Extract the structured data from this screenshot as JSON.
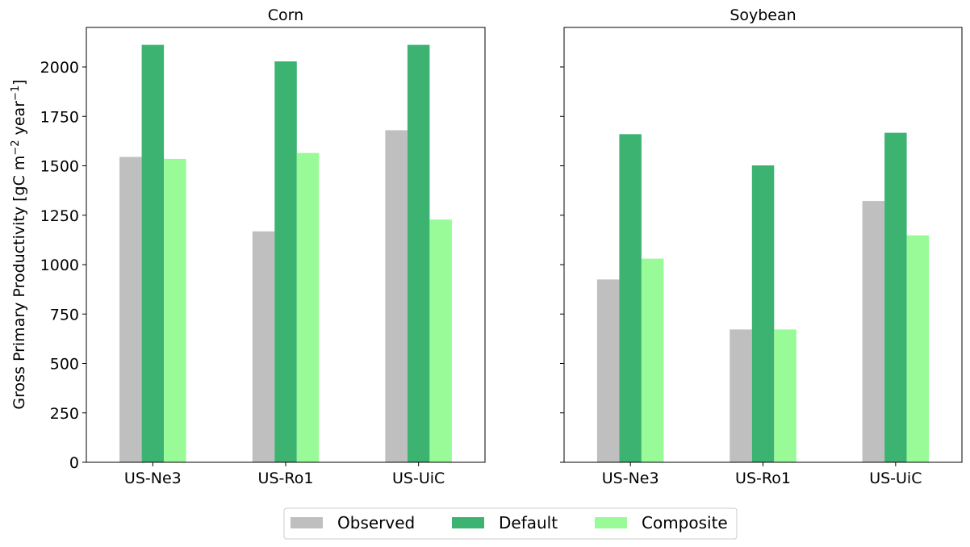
{
  "chart_data": {
    "type": "bar",
    "ylabel": "Gross Primary Productivity [gC m",
    "ylabel_sup1": "−2",
    "ylabel_mid": " year",
    "ylabel_sup2": "−1",
    "ylabel_end": "]",
    "ylim": [
      0,
      2200
    ],
    "yticks": [
      "0",
      "250",
      "500",
      "750",
      "1000",
      "1250",
      "1500",
      "1750",
      "2000"
    ],
    "sharey": true,
    "legend_position": "bottom-center",
    "legend": [
      {
        "name": "Observed",
        "color": "#bfbfbf"
      },
      {
        "name": "Default",
        "color": "#3cb371"
      },
      {
        "name": "Composite",
        "color": "#98fb98"
      }
    ],
    "panels": [
      {
        "title": "Corn",
        "categories": [
          "US-Ne3",
          "US-Ro1",
          "US-UiC"
        ],
        "series": [
          {
            "name": "Observed",
            "values": [
              1545,
              1168,
              1680
            ]
          },
          {
            "name": "Default",
            "values": [
              2112,
              2028,
              2112
            ]
          },
          {
            "name": "Composite",
            "values": [
              1535,
              1565,
              1228
            ]
          }
        ]
      },
      {
        "title": "Soybean",
        "categories": [
          "US-Ne3",
          "US-Ro1",
          "US-UiC"
        ],
        "series": [
          {
            "name": "Observed",
            "values": [
              925,
              672,
              1322
            ]
          },
          {
            "name": "Default",
            "values": [
              1660,
              1502,
              1667
            ]
          },
          {
            "name": "Composite",
            "values": [
              1030,
              672,
              1148
            ]
          }
        ]
      }
    ]
  }
}
